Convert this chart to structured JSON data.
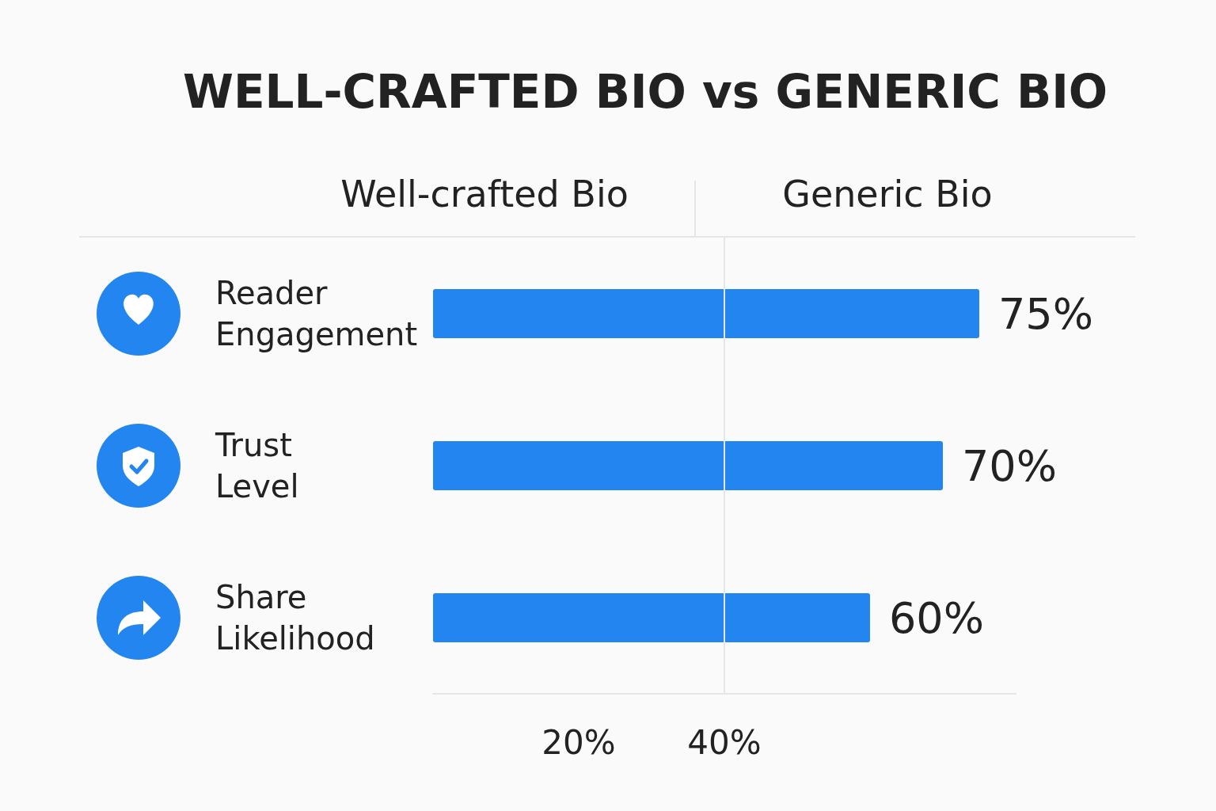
{
  "chart_data": {
    "type": "bar",
    "orientation": "horizontal",
    "title": "WELL-CRAFTED BIO vs GENERIC BIO",
    "annotations": [
      "Well-crafted Bio",
      "Generic Bio"
    ],
    "categories": [
      "Reader Engagement",
      "Trust Level",
      "Share Likelihood"
    ],
    "values": [
      75,
      70,
      60
    ],
    "color": "#2385ef",
    "value_labels": [
      "75%",
      "70%",
      "60%"
    ],
    "xlim": [
      0,
      80
    ],
    "xticks": [
      {
        "value": 20,
        "label": "20%"
      },
      {
        "value": 40,
        "label": "40%"
      }
    ],
    "ref_lines": [
      {
        "axis": "x",
        "value": 40,
        "color": "#e6e6e6"
      }
    ],
    "grid": false
  }
}
